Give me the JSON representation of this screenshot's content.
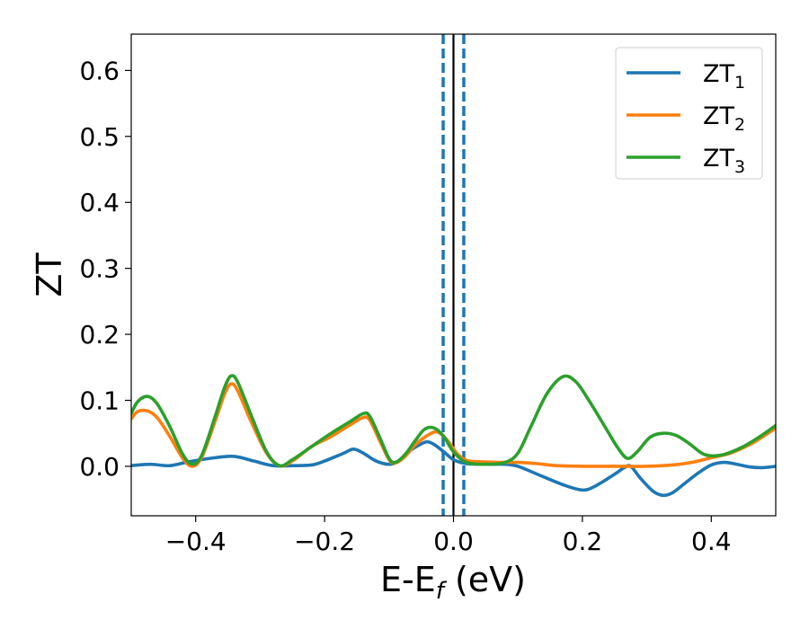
{
  "chart_data": {
    "type": "line",
    "xlabel": {
      "main": "E-E",
      "sub": "f",
      "unit": " (eV)"
    },
    "ylabel": "ZT",
    "xlim": [
      -0.5,
      0.5
    ],
    "ylim": [
      -0.075,
      0.655
    ],
    "xticks": [
      -0.4,
      -0.2,
      0.0,
      0.2,
      0.4
    ],
    "xtick_labels": [
      "−0.4",
      "−0.2",
      "0.0",
      "0.2",
      "0.4"
    ],
    "yticks": [
      0.0,
      0.1,
      0.2,
      0.3,
      0.4,
      0.5,
      0.6
    ],
    "ytick_labels": [
      "0.0",
      "0.1",
      "0.2",
      "0.3",
      "0.4",
      "0.5",
      "0.6"
    ],
    "grid": false,
    "legend_position": "top-right",
    "reference_lines": [
      {
        "x": -0.016,
        "style": "dashed",
        "color": "#1f77b4"
      },
      {
        "x": 0.0,
        "style": "solid",
        "color": "#000000"
      },
      {
        "x": 0.016,
        "style": "dashed",
        "color": "#1f77b4"
      }
    ],
    "series": [
      {
        "name": "ZT",
        "sub": "1",
        "color": "#1f77b4",
        "points": [
          [
            -0.5,
            0.001
          ],
          [
            -0.47,
            0.003
          ],
          [
            -0.44,
            0.001
          ],
          [
            -0.41,
            0.007
          ],
          [
            -0.37,
            0.013
          ],
          [
            -0.34,
            0.015
          ],
          [
            -0.31,
            0.008
          ],
          [
            -0.28,
            0.001
          ],
          [
            -0.25,
            0.001
          ],
          [
            -0.22,
            0.002
          ],
          [
            -0.2,
            0.008
          ],
          [
            -0.17,
            0.02
          ],
          [
            -0.155,
            0.026
          ],
          [
            -0.14,
            0.02
          ],
          [
            -0.12,
            0.008
          ],
          [
            -0.1,
            0.003
          ],
          [
            -0.085,
            0.008
          ],
          [
            -0.07,
            0.022
          ],
          [
            -0.05,
            0.034
          ],
          [
            -0.04,
            0.037
          ],
          [
            -0.03,
            0.033
          ],
          [
            -0.015,
            0.022
          ],
          [
            0.0,
            0.01
          ],
          [
            0.02,
            0.004
          ],
          [
            0.05,
            0.003
          ],
          [
            0.08,
            0.003
          ],
          [
            0.1,
            0.0
          ],
          [
            0.13,
            -0.012
          ],
          [
            0.17,
            -0.028
          ],
          [
            0.2,
            -0.036
          ],
          [
            0.22,
            -0.03
          ],
          [
            0.25,
            -0.012
          ],
          [
            0.265,
            -0.002
          ],
          [
            0.275,
            0.0
          ],
          [
            0.29,
            -0.018
          ],
          [
            0.31,
            -0.038
          ],
          [
            0.325,
            -0.044
          ],
          [
            0.34,
            -0.04
          ],
          [
            0.36,
            -0.025
          ],
          [
            0.38,
            -0.01
          ],
          [
            0.4,
            0.002
          ],
          [
            0.42,
            0.006
          ],
          [
            0.44,
            0.003
          ],
          [
            0.46,
            -0.001
          ],
          [
            0.48,
            -0.002
          ],
          [
            0.5,
            0.0
          ]
        ]
      },
      {
        "name": "ZT",
        "sub": "2",
        "color": "#ff7f0e",
        "points": [
          [
            -0.5,
            0.072
          ],
          [
            -0.49,
            0.083
          ],
          [
            -0.475,
            0.084
          ],
          [
            -0.46,
            0.074
          ],
          [
            -0.44,
            0.045
          ],
          [
            -0.42,
            0.012
          ],
          [
            -0.405,
            0.0
          ],
          [
            -0.39,
            0.015
          ],
          [
            -0.37,
            0.068
          ],
          [
            -0.355,
            0.11
          ],
          [
            -0.345,
            0.125
          ],
          [
            -0.335,
            0.115
          ],
          [
            -0.315,
            0.07
          ],
          [
            -0.29,
            0.02
          ],
          [
            -0.27,
            0.001
          ],
          [
            -0.25,
            0.008
          ],
          [
            -0.22,
            0.03
          ],
          [
            -0.19,
            0.045
          ],
          [
            -0.16,
            0.063
          ],
          [
            -0.14,
            0.074
          ],
          [
            -0.13,
            0.07
          ],
          [
            -0.115,
            0.04
          ],
          [
            -0.1,
            0.01
          ],
          [
            -0.09,
            0.005
          ],
          [
            -0.075,
            0.015
          ],
          [
            -0.06,
            0.032
          ],
          [
            -0.04,
            0.047
          ],
          [
            -0.025,
            0.052
          ],
          [
            -0.01,
            0.04
          ],
          [
            0.005,
            0.02
          ],
          [
            0.02,
            0.009
          ],
          [
            0.04,
            0.007
          ],
          [
            0.07,
            0.006
          ],
          [
            0.1,
            0.006
          ],
          [
            0.13,
            0.004
          ],
          [
            0.16,
            0.001
          ],
          [
            0.2,
            0.0
          ],
          [
            0.25,
            0.0
          ],
          [
            0.3,
            0.0
          ],
          [
            0.34,
            0.002
          ],
          [
            0.37,
            0.006
          ],
          [
            0.4,
            0.013
          ],
          [
            0.43,
            0.02
          ],
          [
            0.46,
            0.033
          ],
          [
            0.48,
            0.045
          ],
          [
            0.5,
            0.058
          ]
        ]
      },
      {
        "name": "ZT",
        "sub": "3",
        "color": "#2ca02c",
        "points": [
          [
            -0.5,
            0.08
          ],
          [
            -0.49,
            0.098
          ],
          [
            -0.475,
            0.106
          ],
          [
            -0.46,
            0.095
          ],
          [
            -0.44,
            0.06
          ],
          [
            -0.42,
            0.018
          ],
          [
            -0.405,
            0.003
          ],
          [
            -0.39,
            0.018
          ],
          [
            -0.37,
            0.075
          ],
          [
            -0.355,
            0.12
          ],
          [
            -0.345,
            0.137
          ],
          [
            -0.335,
            0.128
          ],
          [
            -0.315,
            0.08
          ],
          [
            -0.29,
            0.022
          ],
          [
            -0.27,
            0.001
          ],
          [
            -0.25,
            0.01
          ],
          [
            -0.22,
            0.03
          ],
          [
            -0.19,
            0.05
          ],
          [
            -0.16,
            0.068
          ],
          [
            -0.14,
            0.08
          ],
          [
            -0.13,
            0.076
          ],
          [
            -0.115,
            0.045
          ],
          [
            -0.1,
            0.012
          ],
          [
            -0.09,
            0.006
          ],
          [
            -0.075,
            0.018
          ],
          [
            -0.06,
            0.038
          ],
          [
            -0.045,
            0.056
          ],
          [
            -0.03,
            0.058
          ],
          [
            -0.015,
            0.045
          ],
          [
            0.0,
            0.022
          ],
          [
            0.02,
            0.006
          ],
          [
            0.05,
            0.003
          ],
          [
            0.08,
            0.006
          ],
          [
            0.1,
            0.02
          ],
          [
            0.12,
            0.06
          ],
          [
            0.145,
            0.11
          ],
          [
            0.17,
            0.136
          ],
          [
            0.19,
            0.128
          ],
          [
            0.21,
            0.1
          ],
          [
            0.235,
            0.06
          ],
          [
            0.255,
            0.028
          ],
          [
            0.27,
            0.012
          ],
          [
            0.285,
            0.022
          ],
          [
            0.305,
            0.044
          ],
          [
            0.325,
            0.05
          ],
          [
            0.345,
            0.047
          ],
          [
            0.365,
            0.035
          ],
          [
            0.385,
            0.02
          ],
          [
            0.4,
            0.016
          ],
          [
            0.42,
            0.018
          ],
          [
            0.45,
            0.03
          ],
          [
            0.48,
            0.048
          ],
          [
            0.5,
            0.062
          ]
        ]
      }
    ]
  }
}
